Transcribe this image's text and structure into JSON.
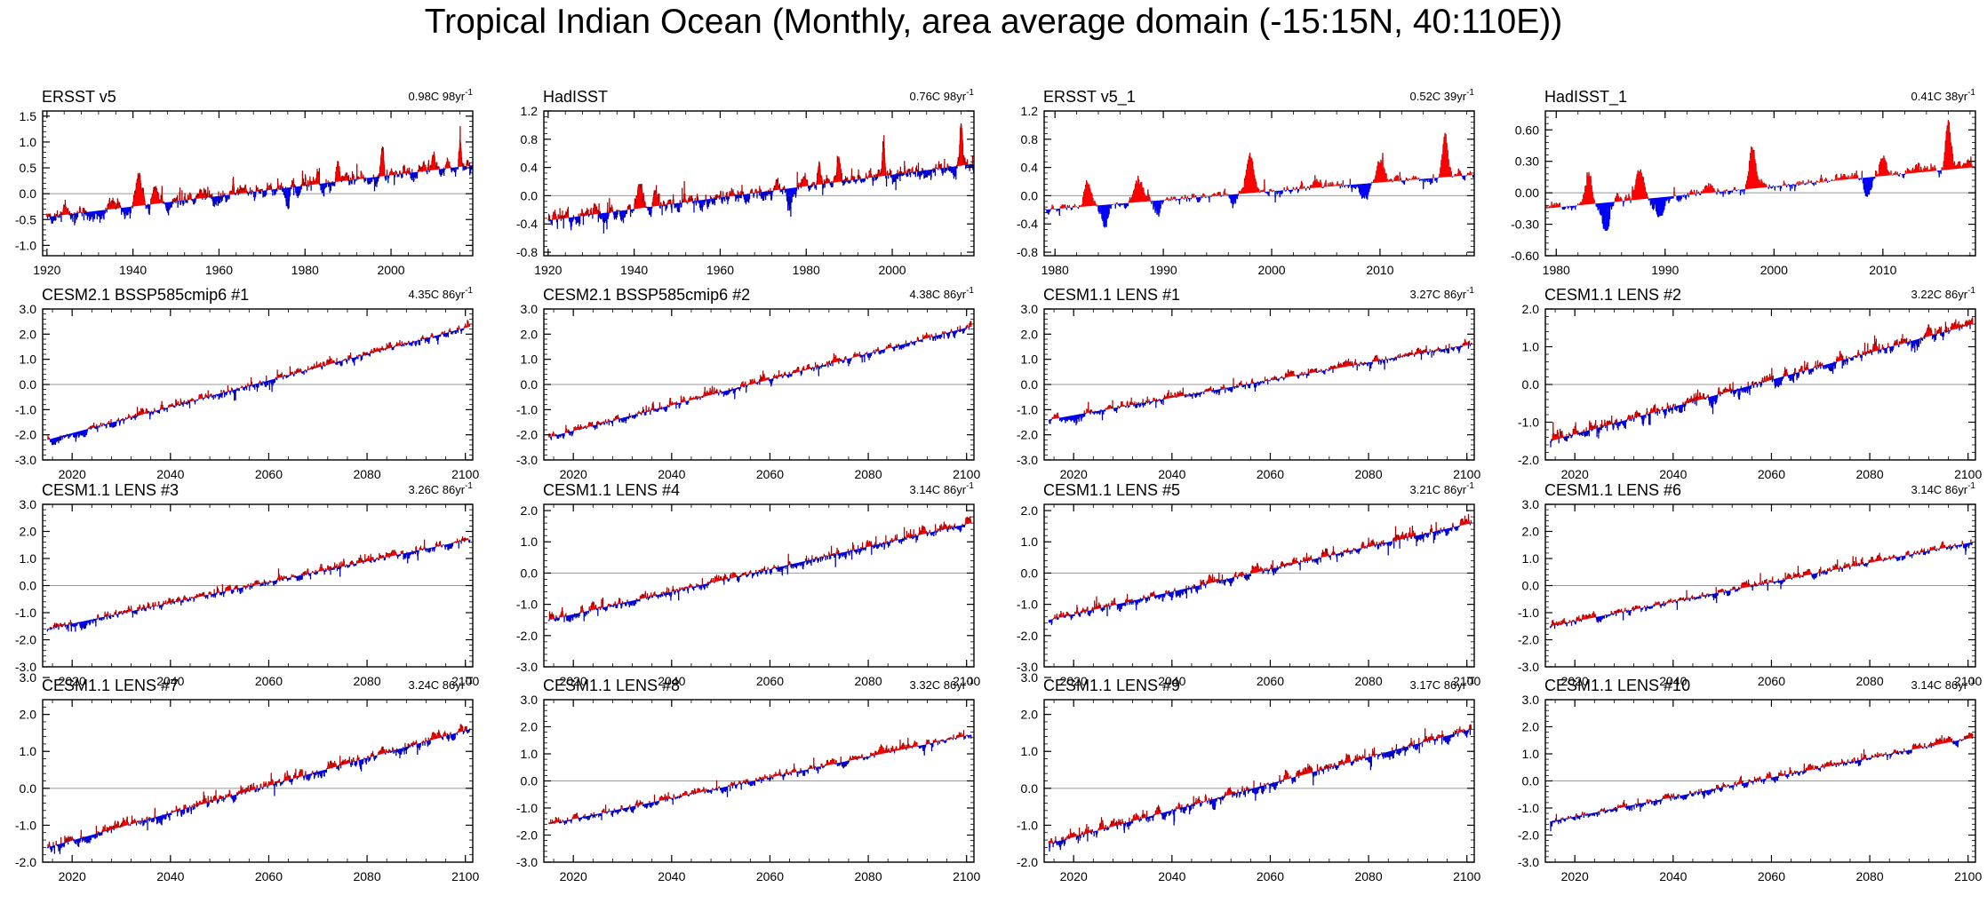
{
  "title": "Tropical Indian Ocean (Monthly, area average domain (-15:15N, 40:110E))",
  "colors": {
    "positive": "#ff0000",
    "negative": "#0000ff",
    "axis": "#000000",
    "zero_line": "#999999"
  },
  "chart_data": [
    {
      "type": "area",
      "title": "ERSST v5",
      "trend_value": "0.98C 98yr",
      "trend_exp": "-1",
      "xticks": [
        "1920",
        "1940",
        "1960",
        "1980",
        "2000"
      ],
      "xlim": [
        1919,
        2019
      ],
      "yticks": [
        "1.5",
        "1.0",
        "0.5",
        "0.0",
        "-0.5",
        "-1.0"
      ],
      "ylim": [
        -1.2,
        1.6
      ],
      "series": {
        "start": 1920,
        "end": 2018,
        "trend_start": -0.45,
        "trend_end": 0.55,
        "noise": 0.12,
        "events": [
          [
            1941.5,
            0.5,
            1.3
          ],
          [
            1945,
            0.3,
            0.8
          ],
          [
            1983,
            0.22,
            0.6
          ],
          [
            1987.5,
            0.3,
            0.8
          ],
          [
            1998,
            0.5,
            0.6
          ],
          [
            2010,
            0.2,
            0.6
          ],
          [
            2016,
            0.5,
            0.5
          ],
          [
            1976,
            -0.25,
            0.9
          ],
          [
            1930,
            -0.15,
            1.5
          ]
        ]
      }
    },
    {
      "type": "area",
      "title": "HadISST",
      "trend_value": "0.76C 98yr",
      "trend_exp": "-1",
      "xticks": [
        "1920",
        "1940",
        "1960",
        "1980",
        "2000"
      ],
      "xlim": [
        1919,
        2019
      ],
      "yticks": [
        "1.2",
        "0.8",
        "0.4",
        "0.0",
        "-0.4",
        "-0.8"
      ],
      "ylim": [
        -0.85,
        1.2
      ],
      "series": {
        "start": 1920,
        "end": 2018,
        "trend_start": -0.35,
        "trend_end": 0.45,
        "noise": 0.1,
        "events": [
          [
            1941.5,
            0.35,
            1.3
          ],
          [
            1945,
            0.2,
            0.8
          ],
          [
            1983,
            0.2,
            0.6
          ],
          [
            1987.5,
            0.25,
            0.8
          ],
          [
            1998,
            0.45,
            0.6
          ],
          [
            2016,
            0.55,
            0.5
          ],
          [
            1976,
            -0.25,
            0.9
          ],
          [
            1956,
            -0.15,
            1.5
          ]
        ]
      }
    },
    {
      "type": "area",
      "title": "ERSST v5_1",
      "trend_value": "0.52C 39yr",
      "trend_exp": "-1",
      "xticks": [
        "1980",
        "1990",
        "2000",
        "2010"
      ],
      "xlim": [
        1979,
        2018.7
      ],
      "yticks": [
        "1.2",
        "0.8",
        "0.4",
        "0.0",
        "-0.4",
        "-0.8"
      ],
      "ylim": [
        -0.85,
        1.2
      ],
      "series": {
        "start": 1979,
        "end": 2018,
        "trend_start": -0.2,
        "trend_end": 0.3,
        "noise": 0.07,
        "events": [
          [
            1983,
            0.32,
            0.6
          ],
          [
            1987.7,
            0.35,
            0.8
          ],
          [
            1998,
            0.55,
            0.6
          ],
          [
            2010,
            0.3,
            0.6
          ],
          [
            2016,
            0.6,
            0.5
          ],
          [
            1984.6,
            -0.3,
            0.7
          ],
          [
            1989.5,
            -0.2,
            0.7
          ],
          [
            1996.5,
            -0.15,
            0.8
          ],
          [
            2008.5,
            -0.2,
            0.6
          ]
        ]
      }
    },
    {
      "type": "area",
      "title": "HadISST_1",
      "trend_value": "0.41C 38yr",
      "trend_exp": "-1",
      "xticks": [
        "1980",
        "1990",
        "2000",
        "2010"
      ],
      "xlim": [
        1979,
        2018.5
      ],
      "yticks": [
        "0.60",
        "0.30",
        "0.00",
        "-0.30",
        "-0.60"
      ],
      "ylim": [
        -0.6,
        0.78
      ],
      "series": {
        "start": 1979,
        "end": 2018,
        "trend_start": -0.15,
        "trend_end": 0.25,
        "noise": 0.05,
        "events": [
          [
            1983,
            0.28,
            0.6
          ],
          [
            1987.7,
            0.3,
            0.8
          ],
          [
            1998,
            0.42,
            0.6
          ],
          [
            2010,
            0.22,
            0.6
          ],
          [
            2016,
            0.45,
            0.5
          ],
          [
            1984.6,
            -0.25,
            0.7
          ],
          [
            1989.5,
            -0.15,
            0.7
          ],
          [
            2008.5,
            -0.15,
            0.6
          ]
        ]
      }
    },
    {
      "type": "area",
      "title": "CESM2.1 BSSP585cmip6 #1",
      "trend_value": "4.35C 86yr",
      "trend_exp": "-1",
      "xticks": [
        "2020",
        "2040",
        "2060",
        "2080",
        "2100"
      ],
      "xlim": [
        2014,
        2101.5
      ],
      "yticks": [
        "3.0",
        "2.0",
        "1.0",
        "0.0",
        "-1.0",
        "-2.0",
        "-3.0"
      ],
      "ylim": [
        -3,
        3
      ],
      "series": {
        "start": 2015,
        "end": 2100,
        "trend_start": -2.2,
        "trend_end": 2.3,
        "noise": 0.16,
        "events": []
      }
    },
    {
      "type": "area",
      "title": "CESM2.1 BSSP585cmip6 #2",
      "trend_value": "4.38C 86yr",
      "trend_exp": "-1",
      "xticks": [
        "2020",
        "2040",
        "2060",
        "2080",
        "2100"
      ],
      "xlim": [
        2014,
        2101.5
      ],
      "yticks": [
        "3.0",
        "2.0",
        "1.0",
        "0.0",
        "-1.0",
        "-2.0",
        "-3.0"
      ],
      "ylim": [
        -3,
        3
      ],
      "series": {
        "start": 2015,
        "end": 2100,
        "trend_start": -2.1,
        "trend_end": 2.3,
        "noise": 0.15,
        "events": []
      }
    },
    {
      "type": "area",
      "title": "CESM1.1 LENS #1",
      "trend_value": "3.27C 86yr",
      "trend_exp": "-1",
      "xticks": [
        "2020",
        "2040",
        "2060",
        "2080",
        "2100"
      ],
      "xlim": [
        2014,
        2101.5
      ],
      "yticks": [
        "3.0",
        "2.0",
        "1.0",
        "0.0",
        "-1.0",
        "-2.0",
        "-3.0"
      ],
      "ylim": [
        -3,
        3
      ],
      "series": {
        "start": 2015,
        "end": 2100,
        "trend_start": -1.4,
        "trend_end": 1.6,
        "noise": 0.15,
        "events": []
      }
    },
    {
      "type": "area",
      "title": "CESM1.1 LENS #2",
      "trend_value": "3.22C 86yr",
      "trend_exp": "-1",
      "xticks": [
        "2020",
        "2040",
        "2060",
        "2080",
        "2100"
      ],
      "xlim": [
        2014,
        2101.5
      ],
      "yticks": [
        "2.0",
        "1.0",
        "0.0",
        "-1.0",
        "-2.0"
      ],
      "ylim": [
        -2,
        2
      ],
      "series": {
        "start": 2015,
        "end": 2100,
        "trend_start": -1.5,
        "trend_end": 1.6,
        "noise": 0.15,
        "events": []
      }
    },
    {
      "type": "area",
      "title": "CESM1.1 LENS #3",
      "trend_value": "3.26C 86yr",
      "trend_exp": "-1",
      "xticks": [
        "2020",
        "2040",
        "2060",
        "2080",
        "2100"
      ],
      "xlim": [
        2014,
        2101.5
      ],
      "yticks": [
        "3.0",
        "2.0",
        "1.0",
        "0.0",
        "-1.0",
        "-2.0",
        "-3.0"
      ],
      "ylim": [
        -3,
        3
      ],
      "series": {
        "start": 2015,
        "end": 2100,
        "trend_start": -1.6,
        "trend_end": 1.7,
        "noise": 0.16,
        "events": []
      }
    },
    {
      "type": "area",
      "title": "CESM1.1 LENS #4",
      "trend_value": "3.14C 86yr",
      "trend_exp": "-1",
      "xticks": [
        "2020",
        "2040",
        "2060",
        "2080",
        "2100"
      ],
      "xlim": [
        2014,
        2101.5
      ],
      "yticks": [
        "2.0",
        "1.0",
        "0.0",
        "-1.0",
        "-2.0",
        "-3.0"
      ],
      "ylim": [
        -3,
        2.2
      ],
      "series": {
        "start": 2015,
        "end": 2100,
        "trend_start": -1.5,
        "trend_end": 1.6,
        "noise": 0.15,
        "events": []
      }
    },
    {
      "type": "area",
      "title": "CESM1.1 LENS #5",
      "trend_value": "3.21C 86yr",
      "trend_exp": "-1",
      "xticks": [
        "2020",
        "2040",
        "2060",
        "2080",
        "2100"
      ],
      "xlim": [
        2014,
        2101.5
      ],
      "yticks": [
        "2.0",
        "1.0",
        "0.0",
        "-1.0",
        "-2.0",
        "-3.0"
      ],
      "ylim": [
        -3,
        2.2
      ],
      "series": {
        "start": 2015,
        "end": 2100,
        "trend_start": -1.5,
        "trend_end": 1.6,
        "noise": 0.15,
        "events": []
      }
    },
    {
      "type": "area",
      "title": "CESM1.1 LENS #6",
      "trend_value": "3.14C 86yr",
      "trend_exp": "-1",
      "xticks": [
        "2020",
        "2040",
        "2060",
        "2080",
        "2100"
      ],
      "xlim": [
        2014,
        2101.5
      ],
      "yticks": [
        "3.0",
        "2.0",
        "1.0",
        "0.0",
        "-1.0",
        "-2.0",
        "-3.0"
      ],
      "ylim": [
        -3,
        3
      ],
      "series": {
        "start": 2015,
        "end": 2100,
        "trend_start": -1.5,
        "trend_end": 1.6,
        "noise": 0.14,
        "events": []
      }
    },
    {
      "type": "area",
      "title": "CESM1.1 LENS #7",
      "trend_value": "3.24C 86yr",
      "trend_exp": "-1",
      "xticks": [
        "2020",
        "2040",
        "2060",
        "2080",
        "2100"
      ],
      "xlim": [
        2014,
        2101.5
      ],
      "yticks": [
        "3.0",
        "2.0",
        "1.0",
        "0.0",
        "-1.0",
        "-2.0"
      ],
      "ylim": [
        -2,
        2.4
      ],
      "series": {
        "start": 2015,
        "end": 2100,
        "trend_start": -1.6,
        "trend_end": 1.6,
        "noise": 0.15,
        "events": []
      }
    },
    {
      "type": "area",
      "title": "CESM1.1 LENS #8",
      "trend_value": "3.32C 86yr",
      "trend_exp": "-1",
      "xticks": [
        "2020",
        "2040",
        "2060",
        "2080",
        "2100"
      ],
      "xlim": [
        2014,
        2101.5
      ],
      "yticks": [
        "3.0",
        "2.0",
        "1.0",
        "0.0",
        "-1.0",
        "-2.0",
        "-3.0"
      ],
      "ylim": [
        -3,
        3
      ],
      "series": {
        "start": 2015,
        "end": 2100,
        "trend_start": -1.6,
        "trend_end": 1.7,
        "noise": 0.14,
        "events": []
      }
    },
    {
      "type": "area",
      "title": "CESM1.1 LENS #9",
      "trend_value": "3.17C 86yr",
      "trend_exp": "-1",
      "xticks": [
        "2020",
        "2040",
        "2060",
        "2080",
        "2100"
      ],
      "xlim": [
        2014,
        2101.5
      ],
      "yticks": [
        "3.0",
        "2.0",
        "1.0",
        "0.0",
        "-1.0",
        "-2.0"
      ],
      "ylim": [
        -2,
        2.4
      ],
      "series": {
        "start": 2015,
        "end": 2100,
        "trend_start": -1.5,
        "trend_end": 1.6,
        "noise": 0.15,
        "events": []
      }
    },
    {
      "type": "area",
      "title": "CESM1.1 LENS #10",
      "trend_value": "3.14C 86yr",
      "trend_exp": "-1",
      "xticks": [
        "2020",
        "2040",
        "2060",
        "2080",
        "2100"
      ],
      "xlim": [
        2014,
        2101.5
      ],
      "yticks": [
        "3.0",
        "2.0",
        "1.0",
        "0.0",
        "-1.0",
        "-2.0",
        "-3.0"
      ],
      "ylim": [
        -3,
        3
      ],
      "series": {
        "start": 2015,
        "end": 2100,
        "trend_start": -1.5,
        "trend_end": 1.6,
        "noise": 0.14,
        "events": []
      }
    }
  ]
}
